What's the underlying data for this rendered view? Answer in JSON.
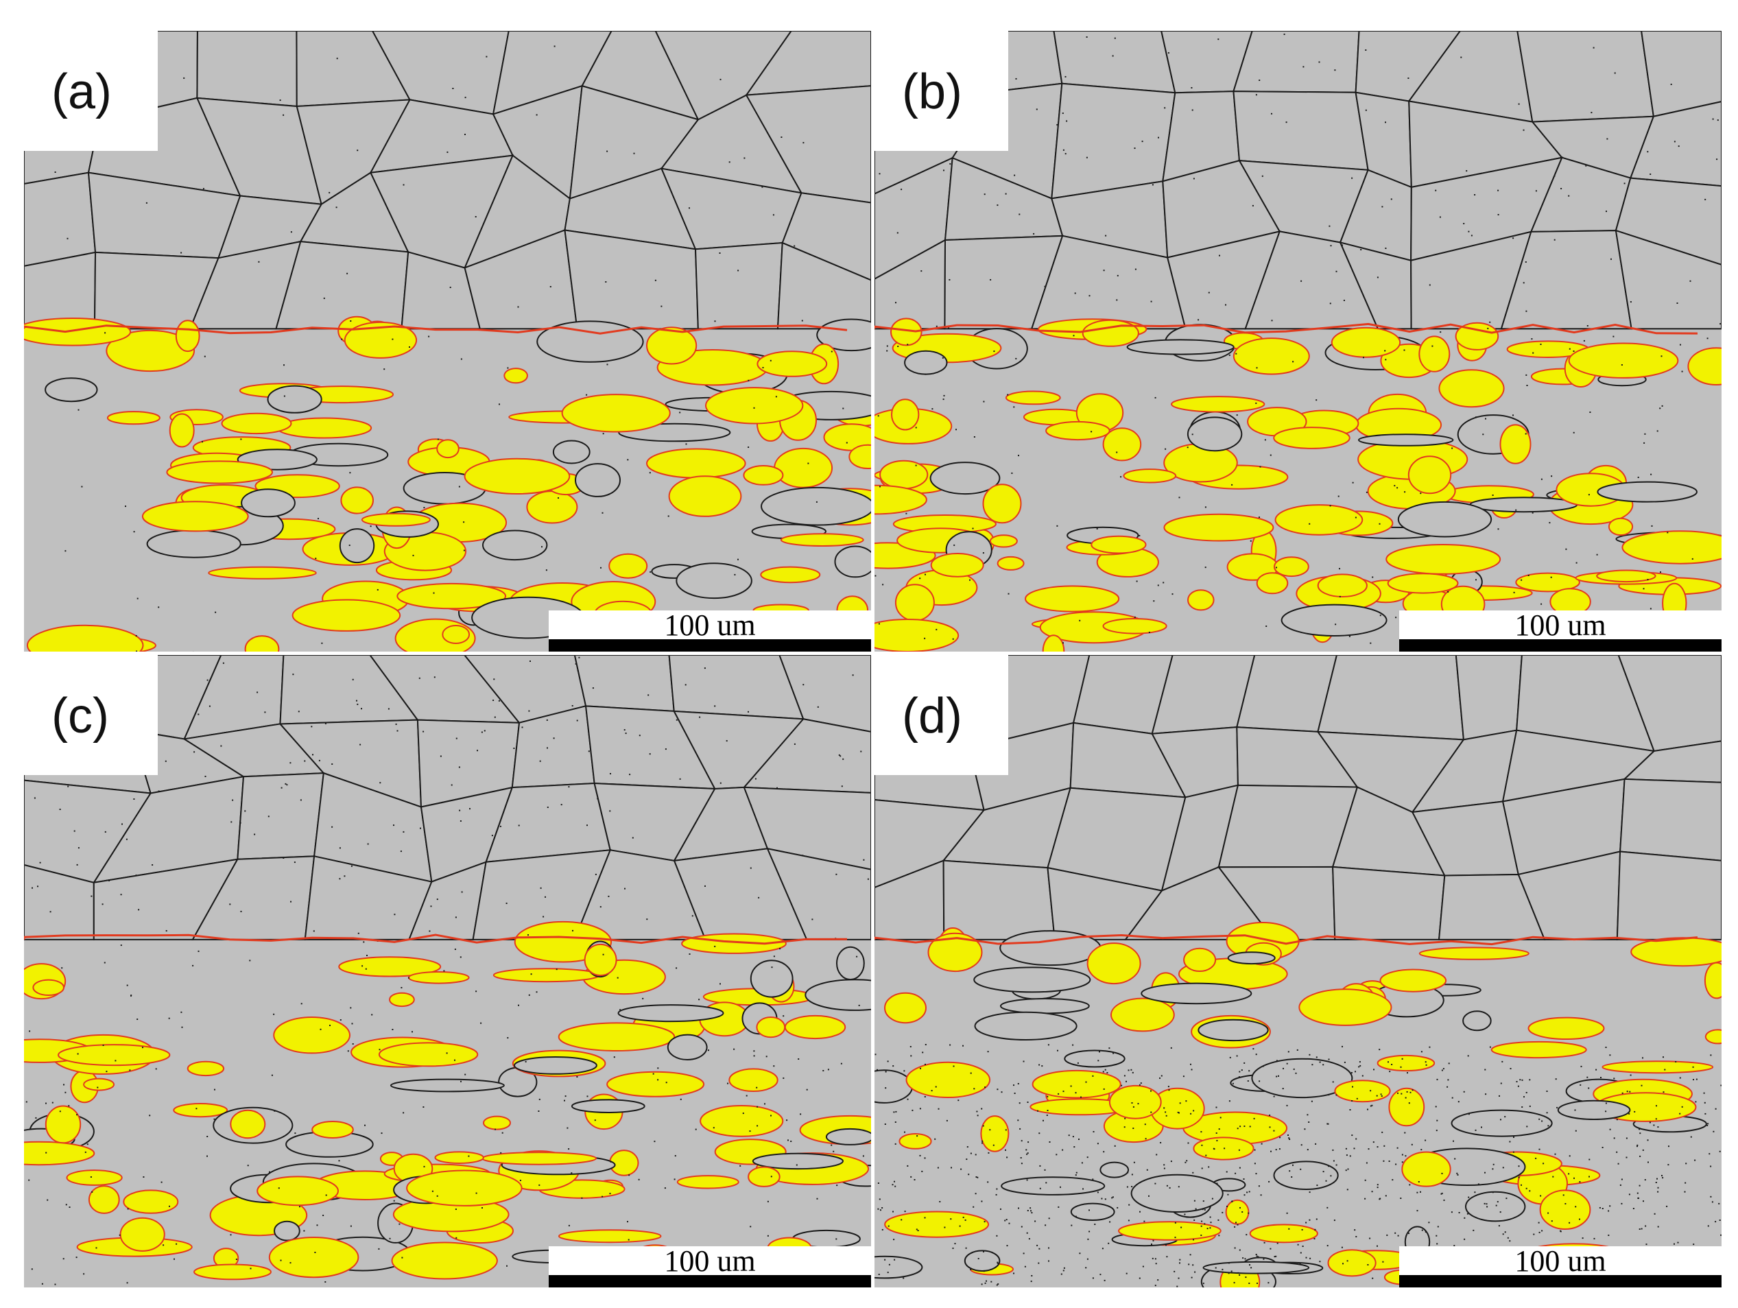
{
  "figure": {
    "panels": [
      {
        "label": "(a)",
        "scale_label": "100 um",
        "yellow_density": 0.45,
        "dark_density": 0.1,
        "seed": 11
      },
      {
        "label": "(b)",
        "scale_label": "100 um",
        "yellow_density": 0.55,
        "dark_density": 0.25,
        "seed": 23
      },
      {
        "label": "(c)",
        "scale_label": "100 um",
        "yellow_density": 0.42,
        "dark_density": 0.35,
        "seed": 37
      },
      {
        "label": "(d)",
        "scale_label": "100 um",
        "yellow_density": 0.4,
        "dark_density": 0.75,
        "seed": 51
      }
    ],
    "colors": {
      "matrix": "#c0c0c0",
      "grain_boundary": "#1a1a1a",
      "phase_boundary": "#e23a1e",
      "second_phase": "#f2f200",
      "label_bg": "#ffffff",
      "scalebar": "#000000"
    }
  }
}
